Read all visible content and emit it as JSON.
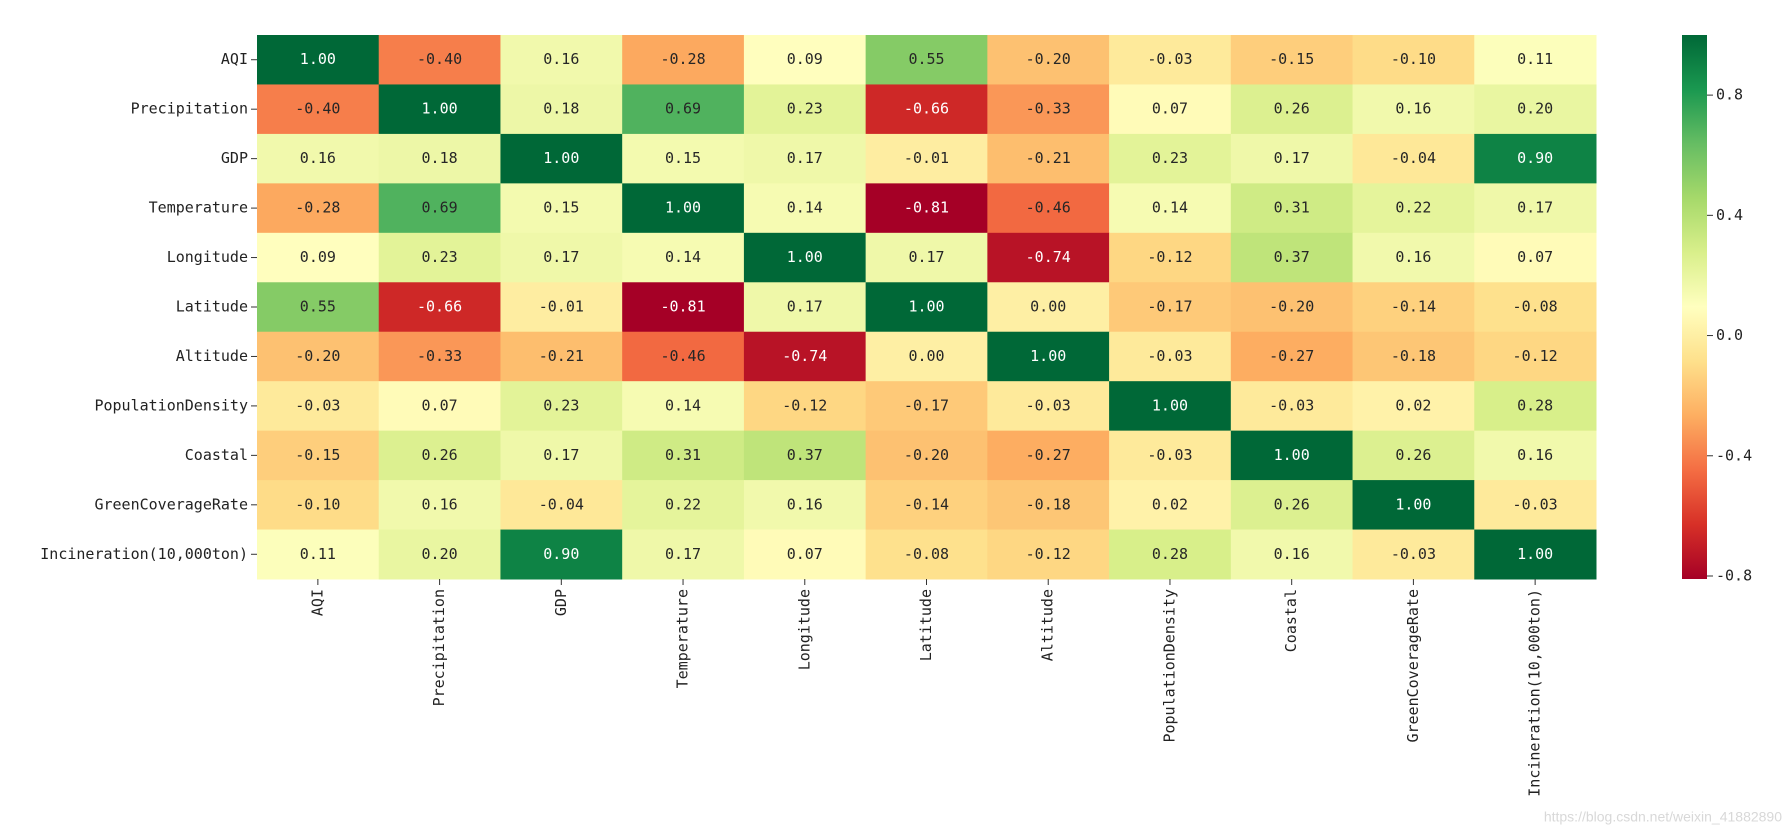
{
  "chart_data": {
    "type": "heatmap",
    "x_categories": [
      "AQI",
      "Precipitation",
      "GDP",
      "Temperature",
      "Longitude",
      "Latitude",
      "Altitude",
      "PopulationDensity",
      "Coastal",
      "GreenCoverageRate",
      "Incineration(10,000ton)"
    ],
    "y_categories": [
      "AQI",
      "Precipitation",
      "GDP",
      "Temperature",
      "Longitude",
      "Latitude",
      "Altitude",
      "PopulationDensity",
      "Coastal",
      "GreenCoverageRate",
      "Incineration(10,000ton)"
    ],
    "values": [
      [
        1,
        -0.4,
        0.16,
        -0.28,
        0.09,
        0.55,
        -0.2,
        -0.03,
        -0.15,
        -0.1,
        0.11
      ],
      [
        -0.4,
        1,
        0.18,
        0.69,
        0.23,
        -0.66,
        -0.33,
        0.07,
        0.26,
        0.16,
        0.2
      ],
      [
        0.16,
        0.18,
        1,
        0.15,
        0.17,
        -0.01,
        -0.21,
        0.23,
        0.17,
        -0.04,
        0.9
      ],
      [
        -0.28,
        0.69,
        0.15,
        1,
        0.14,
        -0.81,
        -0.46,
        0.14,
        0.31,
        0.22,
        0.17
      ],
      [
        0.09,
        0.23,
        0.17,
        0.14,
        1,
        0.17,
        -0.74,
        -0.12,
        0.37,
        0.16,
        0.07
      ],
      [
        0.55,
        -0.66,
        -0.01,
        -0.81,
        0.17,
        1,
        0,
        -0.17,
        -0.2,
        -0.14,
        -0.08
      ],
      [
        -0.2,
        -0.33,
        -0.21,
        -0.46,
        -0.74,
        0,
        1,
        -0.03,
        -0.27,
        -0.18,
        -0.12
      ],
      [
        -0.03,
        0.07,
        0.23,
        0.14,
        -0.12,
        -0.17,
        -0.03,
        1,
        -0.03,
        0.02,
        0.28
      ],
      [
        -0.15,
        0.26,
        0.17,
        0.31,
        0.37,
        -0.2,
        -0.27,
        -0.03,
        1,
        0.26,
        0.16
      ],
      [
        -0.1,
        0.16,
        -0.04,
        0.22,
        0.16,
        -0.14,
        -0.18,
        0.02,
        0.26,
        1,
        -0.03
      ],
      [
        0.11,
        0.2,
        0.9,
        0.17,
        0.07,
        -0.08,
        -0.12,
        0.28,
        0.16,
        -0.03,
        1
      ]
    ],
    "value_labels": [
      [
        "1.00",
        "-0.40",
        "0.16",
        "-0.28",
        "0.09",
        "0.55",
        "-0.20",
        "-0.03",
        "-0.15",
        "-0.10",
        "0.11"
      ],
      [
        "-0.40",
        "1.00",
        "0.18",
        "0.69",
        "0.23",
        "-0.66",
        "-0.33",
        "0.07",
        "0.26",
        "0.16",
        "0.20"
      ],
      [
        "0.16",
        "0.18",
        "1.00",
        "0.15",
        "0.17",
        "-0.01",
        "-0.21",
        "0.23",
        "0.17",
        "-0.04",
        "0.90"
      ],
      [
        "-0.28",
        "0.69",
        "0.15",
        "1.00",
        "0.14",
        "-0.81",
        "-0.46",
        "0.14",
        "0.31",
        "0.22",
        "0.17"
      ],
      [
        "0.09",
        "0.23",
        "0.17",
        "0.14",
        "1.00",
        "0.17",
        "-0.74",
        "-0.12",
        "0.37",
        "0.16",
        "0.07"
      ],
      [
        "0.55",
        "-0.66",
        "-0.01",
        "-0.81",
        "0.17",
        "1.00",
        "0.00",
        "-0.17",
        "-0.20",
        "-0.14",
        "-0.08"
      ],
      [
        "-0.20",
        "-0.33",
        "-0.21",
        "-0.46",
        "-0.74",
        "0.00",
        "1.00",
        "-0.03",
        "-0.27",
        "-0.18",
        "-0.12"
      ],
      [
        "-0.03",
        "0.07",
        "0.23",
        "0.14",
        "-0.12",
        "-0.17",
        "-0.03",
        "1.00",
        "-0.03",
        "0.02",
        "0.28"
      ],
      [
        "-0.15",
        "0.26",
        "0.17",
        "0.31",
        "0.37",
        "-0.20",
        "-0.27",
        "-0.03",
        "1.00",
        "0.26",
        "0.16"
      ],
      [
        "-0.10",
        "0.16",
        "-0.04",
        "0.22",
        "0.16",
        "-0.14",
        "-0.18",
        "0.02",
        "0.26",
        "1.00",
        "-0.03"
      ],
      [
        "0.11",
        "0.20",
        "0.90",
        "0.17",
        "0.07",
        "-0.08",
        "-0.12",
        "0.28",
        "0.16",
        "-0.03",
        "1.00"
      ]
    ],
    "colormap": "RdYlGn",
    "zlim": [
      -0.81,
      1.0
    ],
    "zticks": [
      -0.8,
      -0.4,
      {
        "value": 0,
        "label": "0.0"
      },
      0.4,
      0.8
    ],
    "watermark": "https://blog.csdn.net/weixin_41882890"
  }
}
